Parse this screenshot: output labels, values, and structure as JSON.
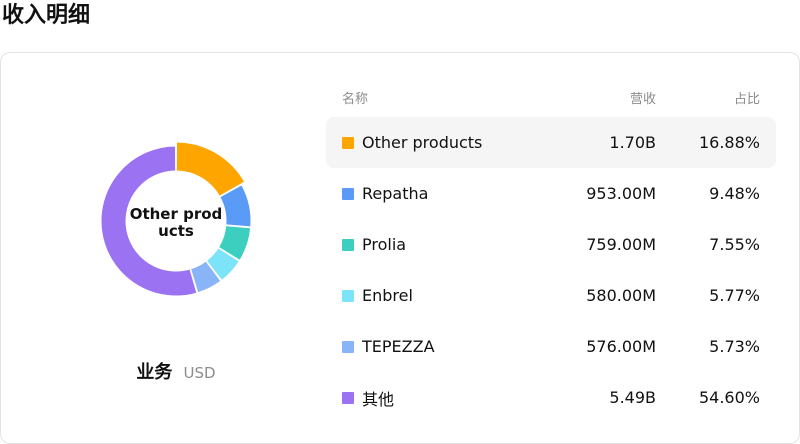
{
  "page": {
    "title": "收入明细"
  },
  "donut": {
    "center_label": "Other products"
  },
  "business": {
    "label": "业务",
    "currency": "USD"
  },
  "table": {
    "headers": {
      "name": "名称",
      "revenue": "营收",
      "share": "占比"
    },
    "rows": [
      {
        "name": "Other products",
        "revenue": "1.70B",
        "share": "16.88%",
        "pct": 16.88,
        "color": "#FFA500",
        "highlighted": true
      },
      {
        "name": "Repatha",
        "revenue": "953.00M",
        "share": "9.48%",
        "pct": 9.48,
        "color": "#5B9BF8",
        "highlighted": false
      },
      {
        "name": "Prolia",
        "revenue": "759.00M",
        "share": "7.55%",
        "pct": 7.55,
        "color": "#3CCFC0",
        "highlighted": false
      },
      {
        "name": "Enbrel",
        "revenue": "580.00M",
        "share": "5.77%",
        "pct": 5.77,
        "color": "#7CE3F8",
        "highlighted": false
      },
      {
        "name": "TEPEZZA",
        "revenue": "576.00M",
        "share": "5.73%",
        "pct": 5.73,
        "color": "#8AB4F8",
        "highlighted": false
      },
      {
        "name": "其他",
        "revenue": "5.49B",
        "share": "54.60%",
        "pct": 54.6,
        "color": "#9B72F2",
        "highlighted": false
      }
    ]
  }
}
